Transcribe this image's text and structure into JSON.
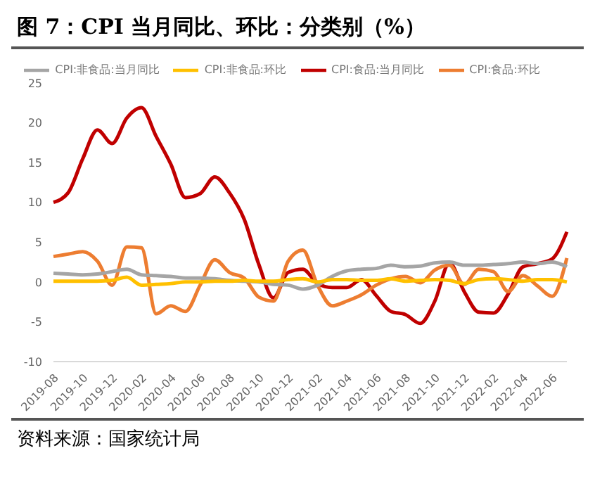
{
  "chart_data": {
    "type": "line",
    "title": "图 7：CPI 当月同比、环比：分类别（%）",
    "annotations": [
      "资料来源：国家统计局"
    ],
    "categories": [
      "2019-08",
      null,
      "2019-10",
      null,
      "2019-12",
      null,
      "2020-02",
      null,
      "2020-04",
      null,
      "2020-06",
      null,
      "2020-08",
      null,
      "2020-10",
      null,
      "2020-12",
      null,
      "2021-02",
      null,
      "2021-04",
      null,
      "2021-06",
      null,
      "2021-08",
      null,
      "2021-10",
      null,
      "2021-12",
      null,
      "2022-02",
      null,
      "2022-04",
      null,
      "2022-06",
      null
    ],
    "series": [
      {
        "name": "CPI:食品:当月同比",
        "color": "#c00000",
        "values": [
          10.0,
          11.2,
          15.5,
          19.1,
          17.4,
          20.6,
          21.9,
          18.3,
          14.8,
          10.6,
          11.1,
          13.2,
          11.2,
          7.9,
          2.2,
          -2.0,
          1.2,
          1.6,
          -0.2,
          -0.7,
          -0.7,
          0.3,
          -1.7,
          -3.7,
          -4.1,
          -5.2,
          -2.4,
          2.4,
          -1.2,
          -3.8,
          -3.9,
          -1.5,
          1.9,
          2.3,
          2.9,
          6.3
        ]
      },
      {
        "name": "CPI:食品:环比",
        "color": "#ed7d31",
        "values": [
          3.2,
          3.5,
          3.8,
          2.6,
          -0.4,
          4.4,
          4.3,
          -4.0,
          -3.0,
          -3.7,
          -0.4,
          2.8,
          1.2,
          0.5,
          -1.9,
          -2.4,
          2.6,
          4.0,
          -0.4,
          -3.0,
          -2.4,
          -1.6,
          -0.4,
          0.4,
          0.7,
          -0.1,
          1.5,
          2.1,
          -0.3,
          1.6,
          1.3,
          -1.2,
          0.8,
          -0.5,
          -1.8,
          3.0
        ]
      },
      {
        "name": "CPI:非食品:当月同比",
        "color": "#a5a5a5",
        "values": [
          1.1,
          1.0,
          0.9,
          1.0,
          1.3,
          1.6,
          0.9,
          0.8,
          0.7,
          0.5,
          0.5,
          0.4,
          0.2,
          0.1,
          0.0,
          -0.3,
          -0.4,
          -0.9,
          -0.4,
          0.7,
          1.4,
          1.6,
          1.7,
          2.1,
          1.9,
          2.0,
          2.4,
          2.5,
          2.1,
          2.1,
          2.2,
          2.3,
          2.5,
          2.3,
          2.5,
          1.9
        ]
      },
      {
        "name": "CPI:非食品:环比",
        "color": "#ffc000",
        "values": [
          0.1,
          0.1,
          0.1,
          0.1,
          0.2,
          0.6,
          -0.4,
          -0.3,
          -0.2,
          0.0,
          0.0,
          0.1,
          0.1,
          0.2,
          0.1,
          0.1,
          0.3,
          0.4,
          0.0,
          0.3,
          0.3,
          0.2,
          0.2,
          0.4,
          0.1,
          0.2,
          0.3,
          0.2,
          -0.2,
          0.3,
          0.4,
          0.3,
          0.1,
          0.3,
          0.3,
          0.0
        ]
      }
    ],
    "ylim": [
      -10,
      25
    ],
    "yticks": [
      -10,
      -5,
      0,
      5,
      10,
      15,
      20,
      25
    ],
    "legend": "top",
    "marker": "none",
    "line_style": "solid"
  }
}
